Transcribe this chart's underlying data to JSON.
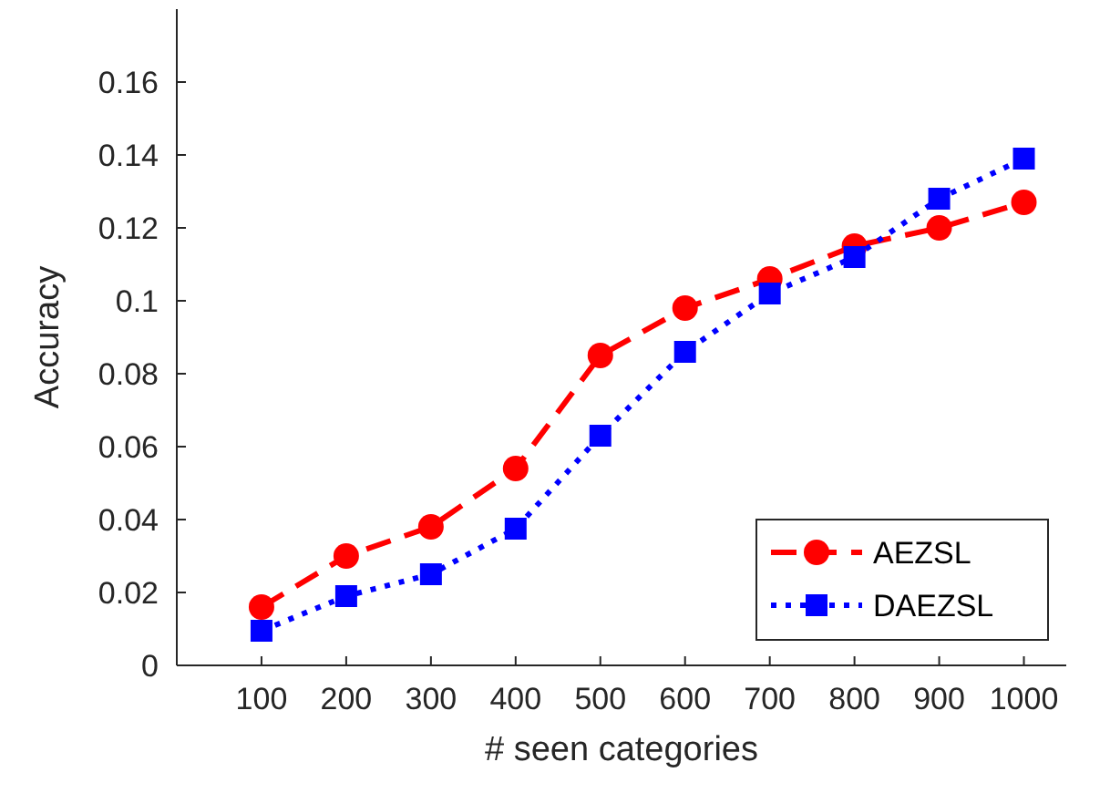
{
  "chart_data": {
    "type": "line",
    "xlabel": "# seen categories",
    "ylabel": "Accuracy",
    "x": [
      100,
      200,
      300,
      400,
      500,
      600,
      700,
      800,
      900,
      1000
    ],
    "xlim": [
      0,
      1050
    ],
    "xticks": [
      100,
      200,
      300,
      400,
      500,
      600,
      700,
      800,
      900,
      1000
    ],
    "ylim": [
      0,
      0.18
    ],
    "yticks": [
      0,
      0.02,
      0.04,
      0.06,
      0.08,
      0.1,
      0.12,
      0.14,
      0.16
    ],
    "series": [
      {
        "name": "AEZSL",
        "color": "#ff0000",
        "marker": "circle",
        "line_style": "dashed",
        "values": [
          0.016,
          0.03,
          0.038,
          0.054,
          0.085,
          0.098,
          0.106,
          0.115,
          0.12,
          0.127
        ]
      },
      {
        "name": "DAEZSL",
        "color": "#0000ff",
        "marker": "square",
        "line_style": "dotted",
        "values": [
          0.0095,
          0.019,
          0.025,
          0.0375,
          0.063,
          0.086,
          0.102,
          0.112,
          0.128,
          0.139
        ]
      }
    ],
    "legend": "bottom right",
    "grid": false
  }
}
